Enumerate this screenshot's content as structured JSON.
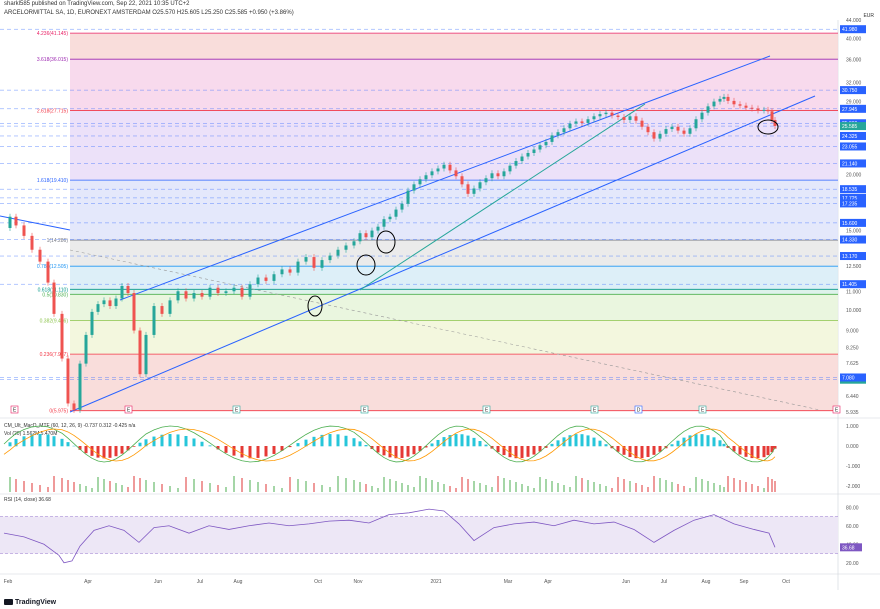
{
  "header": {
    "publisher": "sharkl585 published on TradingView.com, Sep 22, 2021 10:35 UTC+2",
    "symbol_line": "ARCELORMITTAL SA, 1D, EURONEXT AMSTERDAM O25.570 H25.605 L25.250 C25.585 +0.950 (+3.86%)",
    "currency": "EUR"
  },
  "footer": {
    "brand": "TradingView"
  },
  "colors": {
    "channel_line": "#2962ff",
    "trend_line": "#26a69a",
    "candle_up": "#26a69a",
    "candle_down": "#ef5350",
    "rsi_line": "#7e57c2",
    "price_label_bg": "#2962ff"
  },
  "chart_data": {
    "type": "candlestick",
    "x_tick_labels": [
      "Feb",
      "Apr",
      "Jun",
      "Jul",
      "Aug",
      "Oct",
      "Nov",
      "2021",
      "Mar",
      "Apr",
      "Jun",
      "Jul",
      "Aug",
      "Sep",
      "Oct"
    ],
    "y_axis_ticks": [
      "44.000",
      "40.000",
      "36.000",
      "32.000",
      "29.000",
      "26.000",
      "23.000",
      "20.000",
      "17.500",
      "15.000",
      "12.500",
      "11.000",
      "10.000",
      "9.000",
      "8.250",
      "7.625",
      "7.000",
      "6.440",
      "5.935"
    ],
    "price_tags": [
      "41.980",
      "30.750",
      "27.945",
      "25.960",
      "25.585",
      "07:49:51",
      "24.325",
      "23.055",
      "21.140",
      "18.535",
      "17.725",
      "17.235",
      "15.600",
      "14.330",
      "13.170",
      "11.405",
      "7.080"
    ],
    "fib_levels": [
      {
        "label": "0(5.975)",
        "value": 5.975,
        "color": "#f23645"
      },
      {
        "label": "0.236(7.977)",
        "value": 7.977,
        "color": "#f23645"
      },
      {
        "label": "0.382(9.466)",
        "value": 9.466,
        "color": "#8bc34a"
      },
      {
        "label": "0.5(10.830)",
        "value": 10.83,
        "color": "#4caf50"
      },
      {
        "label": "0.618(11.110)",
        "value": 11.11,
        "color": "#009688"
      },
      {
        "label": "0.786(12.505)",
        "value": 12.505,
        "color": "#2196f3"
      },
      {
        "label": "1(14.286)",
        "value": 14.286,
        "color": "#787b86"
      },
      {
        "label": "1.618(19.410)",
        "value": 19.41,
        "color": "#2962ff"
      },
      {
        "label": "2.618(27.715)",
        "value": 27.715,
        "color": "#f23645"
      },
      {
        "label": "3.618(36.015)",
        "value": 36.015,
        "color": "#9c27b0"
      },
      {
        "label": "4.236(41.145)",
        "value": 41.145,
        "color": "#e91e63"
      }
    ],
    "price_path": [
      [
        0,
        15.2
      ],
      [
        6,
        16.1
      ],
      [
        12,
        15.4
      ],
      [
        20,
        14.6
      ],
      [
        28,
        13.6
      ],
      [
        36,
        12.8
      ],
      [
        44,
        11.5
      ],
      [
        50,
        9.8
      ],
      [
        58,
        7.8
      ],
      [
        64,
        6.2
      ],
      [
        70,
        6.0
      ],
      [
        76,
        7.6
      ],
      [
        82,
        8.8
      ],
      [
        88,
        9.9
      ],
      [
        94,
        10.3
      ],
      [
        100,
        10.5
      ],
      [
        106,
        10.2
      ],
      [
        112,
        10.6
      ],
      [
        118,
        11.3
      ],
      [
        124,
        10.9
      ],
      [
        130,
        9.0
      ],
      [
        136,
        7.2
      ],
      [
        142,
        8.8
      ],
      [
        150,
        10.2
      ],
      [
        158,
        9.8
      ],
      [
        166,
        10.5
      ],
      [
        174,
        11.0
      ],
      [
        182,
        10.6
      ],
      [
        190,
        10.9
      ],
      [
        198,
        10.7
      ],
      [
        206,
        11.2
      ],
      [
        214,
        10.9
      ],
      [
        222,
        11.0
      ],
      [
        230,
        11.2
      ],
      [
        238,
        10.7
      ],
      [
        246,
        11.4
      ],
      [
        254,
        11.8
      ],
      [
        262,
        11.6
      ],
      [
        270,
        12.0
      ],
      [
        278,
        12.3
      ],
      [
        286,
        12.1
      ],
      [
        294,
        12.8
      ],
      [
        302,
        13.1
      ],
      [
        310,
        12.4
      ],
      [
        318,
        12.9
      ],
      [
        326,
        13.2
      ],
      [
        334,
        13.6
      ],
      [
        342,
        13.9
      ],
      [
        350,
        14.2
      ],
      [
        356,
        14.8
      ],
      [
        362,
        14.5
      ],
      [
        368,
        15.0
      ],
      [
        374,
        15.3
      ],
      [
        380,
        15.9
      ],
      [
        386,
        16.1
      ],
      [
        392,
        16.7
      ],
      [
        398,
        17.2
      ],
      [
        404,
        18.4
      ],
      [
        410,
        19.0
      ],
      [
        416,
        19.5
      ],
      [
        422,
        19.9
      ],
      [
        428,
        20.3
      ],
      [
        434,
        20.6
      ],
      [
        440,
        21.0
      ],
      [
        446,
        20.4
      ],
      [
        452,
        19.8
      ],
      [
        458,
        19.0
      ],
      [
        464,
        18.1
      ],
      [
        470,
        18.6
      ],
      [
        476,
        19.2
      ],
      [
        482,
        19.6
      ],
      [
        488,
        20.1
      ],
      [
        494,
        19.8
      ],
      [
        500,
        20.3
      ],
      [
        506,
        20.9
      ],
      [
        512,
        21.4
      ],
      [
        518,
        21.9
      ],
      [
        524,
        22.3
      ],
      [
        530,
        22.7
      ],
      [
        536,
        23.2
      ],
      [
        542,
        23.6
      ],
      [
        548,
        24.4
      ],
      [
        554,
        24.8
      ],
      [
        560,
        25.3
      ],
      [
        566,
        25.9
      ],
      [
        572,
        26.2
      ],
      [
        578,
        26.0
      ],
      [
        584,
        26.5
      ],
      [
        590,
        26.9
      ],
      [
        596,
        27.2
      ],
      [
        602,
        27.4
      ],
      [
        608,
        27.0
      ],
      [
        614,
        26.8
      ],
      [
        620,
        26.4
      ],
      [
        626,
        26.9
      ],
      [
        632,
        26.3
      ],
      [
        638,
        25.5
      ],
      [
        644,
        24.8
      ],
      [
        650,
        24.0
      ],
      [
        656,
        24.6
      ],
      [
        662,
        25.2
      ],
      [
        668,
        25.5
      ],
      [
        674,
        25.0
      ],
      [
        680,
        24.6
      ],
      [
        686,
        25.3
      ],
      [
        692,
        26.5
      ],
      [
        698,
        27.4
      ],
      [
        704,
        28.3
      ],
      [
        710,
        29.0
      ],
      [
        716,
        29.4
      ],
      [
        720,
        29.7
      ],
      [
        724,
        29.1
      ],
      [
        730,
        28.6
      ],
      [
        736,
        28.4
      ],
      [
        742,
        28.1
      ],
      [
        748,
        28.0
      ],
      [
        754,
        27.7
      ],
      [
        760,
        27.8
      ],
      [
        764,
        27.6
      ],
      [
        768,
        26.4
      ],
      [
        771,
        25.6
      ]
    ],
    "price_axis_scale": "log",
    "drawn_lines": [
      "ascending channel (upper)",
      "ascending channel (lower)",
      "trend line",
      "descending trend line (dashed)"
    ],
    "macd": {
      "label": "CM_Ult_MacD_MTF (60, 12, 26, 9)",
      "values": [
        "-0.737",
        "0.312",
        "-0.425",
        "n/a"
      ],
      "y_ticks": [
        "1.000",
        "0.000",
        "-1.000",
        "-2.000"
      ]
    },
    "volume": {
      "label": "Vol (20)",
      "values": [
        "1.562M",
        "5.470M"
      ]
    },
    "rsi": {
      "label": "RSI (14, close)",
      "value": "36.68",
      "y_ticks": [
        "80.00",
        "60.00",
        "40.00",
        "20.00"
      ],
      "upper": 70,
      "lower": 30,
      "path": [
        [
          0,
          52
        ],
        [
          20,
          48
        ],
        [
          40,
          40
        ],
        [
          55,
          28
        ],
        [
          60,
          20
        ],
        [
          68,
          22
        ],
        [
          76,
          38
        ],
        [
          90,
          55
        ],
        [
          105,
          60
        ],
        [
          120,
          55
        ],
        [
          135,
          42
        ],
        [
          150,
          58
        ],
        [
          165,
          60
        ],
        [
          185,
          52
        ],
        [
          205,
          60
        ],
        [
          225,
          56
        ],
        [
          245,
          60
        ],
        [
          265,
          63
        ],
        [
          285,
          60
        ],
        [
          305,
          62
        ],
        [
          325,
          65
        ],
        [
          345,
          66
        ],
        [
          365,
          63
        ],
        [
          385,
          72
        ],
        [
          405,
          74
        ],
        [
          425,
          78
        ],
        [
          440,
          76
        ],
        [
          455,
          62
        ],
        [
          470,
          44
        ],
        [
          490,
          58
        ],
        [
          510,
          62
        ],
        [
          530,
          64
        ],
        [
          550,
          60
        ],
        [
          570,
          66
        ],
        [
          590,
          62
        ],
        [
          610,
          64
        ],
        [
          630,
          56
        ],
        [
          650,
          42
        ],
        [
          670,
          55
        ],
        [
          690,
          66
        ],
        [
          710,
          72
        ],
        [
          730,
          62
        ],
        [
          750,
          56
        ],
        [
          765,
          52
        ],
        [
          771,
          36.68
        ]
      ]
    }
  }
}
